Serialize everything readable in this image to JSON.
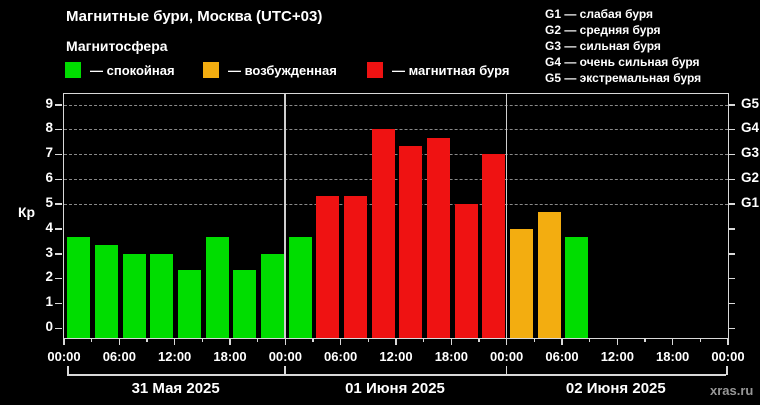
{
  "header": {
    "title": "Магнитные бури, Москва (UTC+03)",
    "subtitle": "Магнитосфера"
  },
  "legend": {
    "items": [
      {
        "id": "quiet",
        "label": "— спокойная",
        "color": "#00DD00"
      },
      {
        "id": "excited",
        "label": "— возбужденная",
        "color": "#F3AD10"
      },
      {
        "id": "storm",
        "label": "— магнитная буря",
        "color": "#EF1212"
      }
    ]
  },
  "g_legend": {
    "items": [
      {
        "label": "G1 — слабая буря"
      },
      {
        "label": "G2 — средняя буря"
      },
      {
        "label": "G3 — сильная буря"
      },
      {
        "label": "G4 — очень сильная буря"
      },
      {
        "label": "G5 — экстремальная буря"
      }
    ]
  },
  "chart_data": {
    "type": "bar",
    "title": "Магнитные бури, Москва (UTC+03)",
    "ylabel": "Кр",
    "ylim": [
      0,
      9
    ],
    "yticks": [
      0,
      1,
      2,
      3,
      4,
      5,
      6,
      7,
      8,
      9
    ],
    "grid_values": [
      5,
      6,
      7,
      8,
      9
    ],
    "grid": "dashed horizontal at G-storm levels only",
    "legend_position": "top",
    "right_axis_labels": [
      {
        "value": 9,
        "label": "G5"
      },
      {
        "value": 8,
        "label": "G4"
      },
      {
        "value": 7,
        "label": "G3"
      },
      {
        "value": 6,
        "label": "G2"
      },
      {
        "value": 5,
        "label": "G1"
      }
    ],
    "x_tick_labels": [
      "00:00",
      "06:00",
      "12:00",
      "18:00",
      "00:00",
      "06:00",
      "12:00",
      "18:00",
      "00:00",
      "06:00",
      "12:00",
      "18:00",
      "00:00"
    ],
    "slots_per_day": 8,
    "days": [
      {
        "label": "31 Мая 2025"
      },
      {
        "label": "01 Июня 2025"
      },
      {
        "label": "02 Июня 2025"
      }
    ],
    "state_colors": {
      "quiet": "#00DD00",
      "excited": "#F3AD10",
      "storm": "#EF1212"
    },
    "bars": [
      {
        "day": 0,
        "slot": 0,
        "value": 3.67,
        "state": "quiet"
      },
      {
        "day": 0,
        "slot": 1,
        "value": 3.33,
        "state": "quiet"
      },
      {
        "day": 0,
        "slot": 2,
        "value": 3.0,
        "state": "quiet"
      },
      {
        "day": 0,
        "slot": 3,
        "value": 3.0,
        "state": "quiet"
      },
      {
        "day": 0,
        "slot": 4,
        "value": 2.33,
        "state": "quiet"
      },
      {
        "day": 0,
        "slot": 5,
        "value": 3.67,
        "state": "quiet"
      },
      {
        "day": 0,
        "slot": 6,
        "value": 2.33,
        "state": "quiet"
      },
      {
        "day": 0,
        "slot": 7,
        "value": 3.0,
        "state": "quiet"
      },
      {
        "day": 1,
        "slot": 0,
        "value": 3.67,
        "state": "quiet"
      },
      {
        "day": 1,
        "slot": 1,
        "value": 5.33,
        "state": "storm"
      },
      {
        "day": 1,
        "slot": 2,
        "value": 5.33,
        "state": "storm"
      },
      {
        "day": 1,
        "slot": 3,
        "value": 8.0,
        "state": "storm"
      },
      {
        "day": 1,
        "slot": 4,
        "value": 7.33,
        "state": "storm"
      },
      {
        "day": 1,
        "slot": 5,
        "value": 7.67,
        "state": "storm"
      },
      {
        "day": 1,
        "slot": 6,
        "value": 5.0,
        "state": "storm"
      },
      {
        "day": 1,
        "slot": 7,
        "value": 7.0,
        "state": "storm"
      },
      {
        "day": 2,
        "slot": 0,
        "value": 4.0,
        "state": "excited"
      },
      {
        "day": 2,
        "slot": 1,
        "value": 4.67,
        "state": "excited"
      },
      {
        "day": 2,
        "slot": 2,
        "value": 3.67,
        "state": "quiet"
      }
    ]
  },
  "watermark": "xras.ru"
}
